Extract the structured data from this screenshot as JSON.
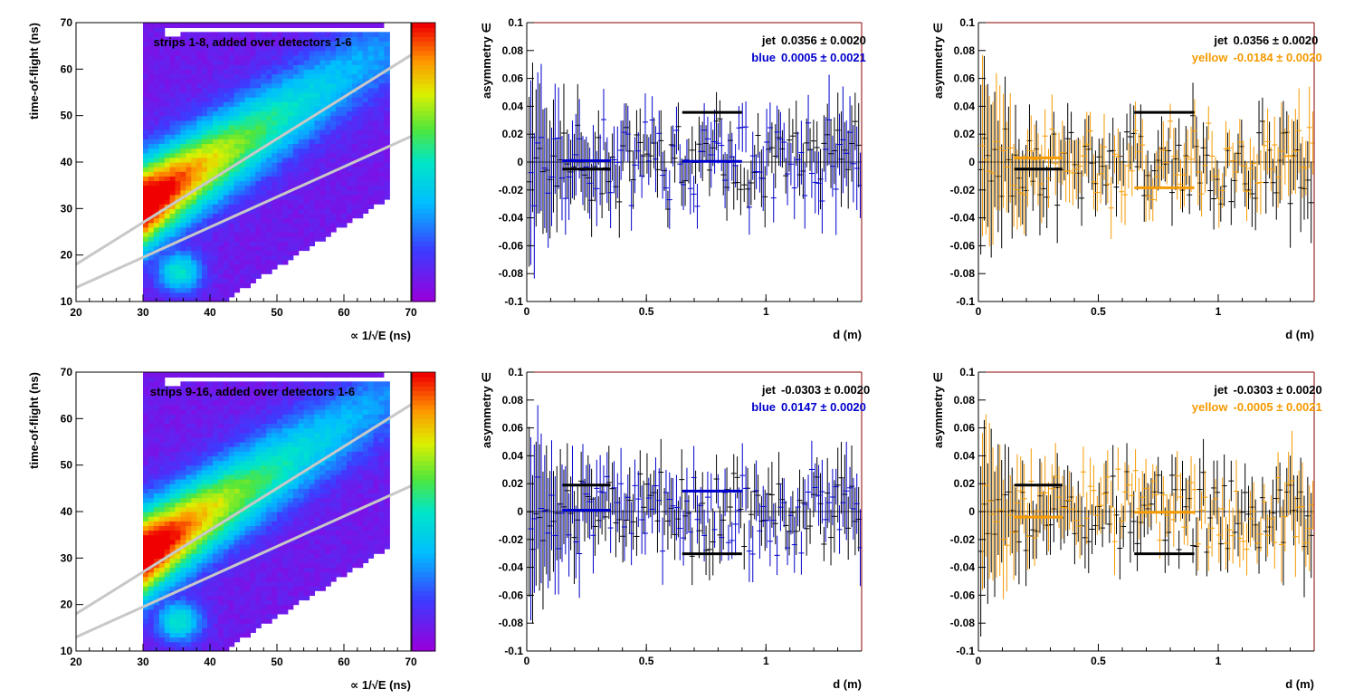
{
  "chart_data": [
    {
      "type": "heatmap",
      "annotation": "strips 1-8, added over detectors 1-6",
      "xlabel": "∝ 1/√E (ns)",
      "ylabel": "time-of-flight (ns)",
      "xlim": [
        20,
        70
      ],
      "ylim": [
        10,
        70
      ],
      "x_ticks": [
        "20",
        "30",
        "40",
        "50",
        "60",
        "70"
      ],
      "y_ticks": [
        "10",
        "20",
        "30",
        "40",
        "50",
        "60",
        "70"
      ],
      "cut_lines": [
        {
          "x": [
            20,
            70
          ],
          "y": [
            18,
            63
          ]
        },
        {
          "x": [
            20,
            70
          ],
          "y": [
            13,
            45.5
          ]
        }
      ],
      "color_scale": "rainbow (purple low → red high)"
    },
    {
      "type": "scatter",
      "xlabel": "d (m)",
      "ylabel": "asymmetry ∈",
      "xlim": [
        0,
        1.4
      ],
      "ylim": [
        -0.1,
        0.1
      ],
      "x_ticks": [
        "0",
        "0.5",
        "1"
      ],
      "y_ticks": [
        "-0.1",
        "-0.08",
        "-0.06",
        "-0.04",
        "-0.02",
        "0",
        "0.02",
        "0.04",
        "0.06",
        "0.08",
        "0.1"
      ],
      "legend": [
        {
          "label": "jet",
          "value": "0.0356 ± 0.0020",
          "color": "#000000"
        },
        {
          "label": "blue",
          "value": "0.0005 ± 0.0021",
          "color": "#0000cc"
        }
      ],
      "fit_lines": [
        {
          "x": [
            0.15,
            0.35
          ],
          "y": -0.005,
          "color": "#000000"
        },
        {
          "x": [
            0.15,
            0.35
          ],
          "y": 0.001,
          "color": "#0000cc"
        },
        {
          "x": [
            0.65,
            0.9
          ],
          "y": 0.0356,
          "color": "#000000"
        },
        {
          "x": [
            0.65,
            0.9
          ],
          "y": 0.0005,
          "color": "#0000cc"
        }
      ]
    },
    {
      "type": "scatter",
      "xlabel": "d (m)",
      "ylabel": "asymmetry ∈",
      "xlim": [
        0,
        1.4
      ],
      "ylim": [
        -0.1,
        0.1
      ],
      "x_ticks": [
        "0",
        "0.5",
        "1"
      ],
      "y_ticks": [
        "-0.1",
        "-0.08",
        "-0.06",
        "-0.04",
        "-0.02",
        "0",
        "0.02",
        "0.04",
        "0.06",
        "0.08",
        "0.1"
      ],
      "legend": [
        {
          "label": "jet",
          "value": "0.0356 ± 0.0020",
          "color": "#000000"
        },
        {
          "label": "yellow",
          "value": "-0.0184 ± 0.0020",
          "color": "#f59a00"
        }
      ],
      "fit_lines": [
        {
          "x": [
            0.15,
            0.35
          ],
          "y": -0.005,
          "color": "#000000"
        },
        {
          "x": [
            0.15,
            0.35
          ],
          "y": 0.003,
          "color": "#f59a00"
        },
        {
          "x": [
            0.65,
            0.9
          ],
          "y": 0.0356,
          "color": "#000000"
        },
        {
          "x": [
            0.65,
            0.9
          ],
          "y": -0.0184,
          "color": "#f59a00"
        }
      ]
    },
    {
      "type": "heatmap",
      "annotation": "strips 9-16, added over detectors 1-6",
      "xlabel": "∝ 1/√E (ns)",
      "ylabel": "time-of-flight (ns)",
      "xlim": [
        20,
        70
      ],
      "ylim": [
        10,
        70
      ],
      "x_ticks": [
        "20",
        "30",
        "40",
        "50",
        "60",
        "70"
      ],
      "y_ticks": [
        "10",
        "20",
        "30",
        "40",
        "50",
        "60",
        "70"
      ],
      "cut_lines": [
        {
          "x": [
            20,
            70
          ],
          "y": [
            18,
            63
          ]
        },
        {
          "x": [
            20,
            70
          ],
          "y": [
            13,
            45.5
          ]
        }
      ],
      "color_scale": "rainbow (purple low → red high)"
    },
    {
      "type": "scatter",
      "xlabel": "d (m)",
      "ylabel": "asymmetry ∈",
      "xlim": [
        0,
        1.4
      ],
      "ylim": [
        -0.1,
        0.1
      ],
      "x_ticks": [
        "0",
        "0.5",
        "1"
      ],
      "y_ticks": [
        "-0.1",
        "-0.08",
        "-0.06",
        "-0.04",
        "-0.02",
        "0",
        "0.02",
        "0.04",
        "0.06",
        "0.08",
        "0.1"
      ],
      "legend": [
        {
          "label": "jet",
          "value": "-0.0303 ± 0.0020",
          "color": "#000000"
        },
        {
          "label": "blue",
          "value": "0.0147 ± 0.0020",
          "color": "#0000cc"
        }
      ],
      "fit_lines": [
        {
          "x": [
            0.15,
            0.35
          ],
          "y": 0.019,
          "color": "#000000"
        },
        {
          "x": [
            0.15,
            0.35
          ],
          "y": 0.001,
          "color": "#0000cc"
        },
        {
          "x": [
            0.65,
            0.9
          ],
          "y": -0.0303,
          "color": "#000000"
        },
        {
          "x": [
            0.65,
            0.9
          ],
          "y": 0.0147,
          "color": "#0000cc"
        }
      ]
    },
    {
      "type": "scatter",
      "xlabel": "d (m)",
      "ylabel": "asymmetry ∈",
      "xlim": [
        0,
        1.4
      ],
      "ylim": [
        -0.1,
        0.1
      ],
      "x_ticks": [
        "0",
        "0.5",
        "1"
      ],
      "y_ticks": [
        "-0.1",
        "-0.08",
        "-0.06",
        "-0.04",
        "-0.02",
        "0",
        "0.02",
        "0.04",
        "0.06",
        "0.08",
        "0.1"
      ],
      "legend": [
        {
          "label": "jet",
          "value": "-0.0303 ± 0.0020",
          "color": "#000000"
        },
        {
          "label": "yellow",
          "value": "-0.0005 ± 0.0021",
          "color": "#f59a00"
        }
      ],
      "fit_lines": [
        {
          "x": [
            0.15,
            0.35
          ],
          "y": 0.019,
          "color": "#000000"
        },
        {
          "x": [
            0.15,
            0.35
          ],
          "y": -0.004,
          "color": "#f59a00"
        },
        {
          "x": [
            0.65,
            0.9
          ],
          "y": -0.0303,
          "color": "#000000"
        },
        {
          "x": [
            0.65,
            0.9
          ],
          "y": -0.0005,
          "color": "#f59a00"
        }
      ]
    }
  ]
}
